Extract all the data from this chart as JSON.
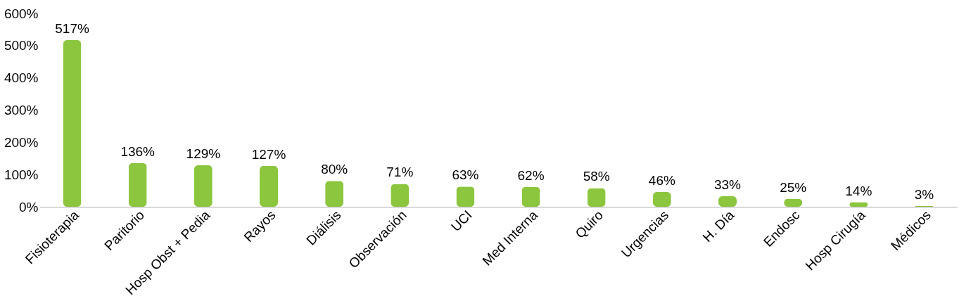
{
  "chart_data": {
    "type": "bar",
    "categories": [
      "Fisioterapia",
      "Paritorio",
      "Hosp Obst + Pedia",
      "Rayos",
      "Diálisis",
      "Observación",
      "UCI",
      "Med Interna",
      "Quiro",
      "Urgencias",
      "H. Día",
      "Endosc",
      "Hosp Cirugía",
      "Médicos"
    ],
    "values": [
      517,
      136,
      129,
      127,
      80,
      71,
      63,
      62,
      58,
      46,
      33,
      25,
      14,
      3
    ],
    "value_labels": [
      "517%",
      "136%",
      "129%",
      "127%",
      "80%",
      "71%",
      "63%",
      "62%",
      "58%",
      "46%",
      "33%",
      "25%",
      "14%",
      "3%"
    ],
    "color": "#8cc63f",
    "ylim": [
      0,
      600
    ],
    "yticks": [
      {
        "value": 0,
        "label": "0%"
      },
      {
        "value": 100,
        "label": "100%"
      },
      {
        "value": 200,
        "label": "200%"
      },
      {
        "value": 300,
        "label": "300%"
      },
      {
        "value": 400,
        "label": "400%"
      },
      {
        "value": 500,
        "label": "500%"
      },
      {
        "value": 600,
        "label": "600%"
      }
    ],
    "grid": false
  }
}
